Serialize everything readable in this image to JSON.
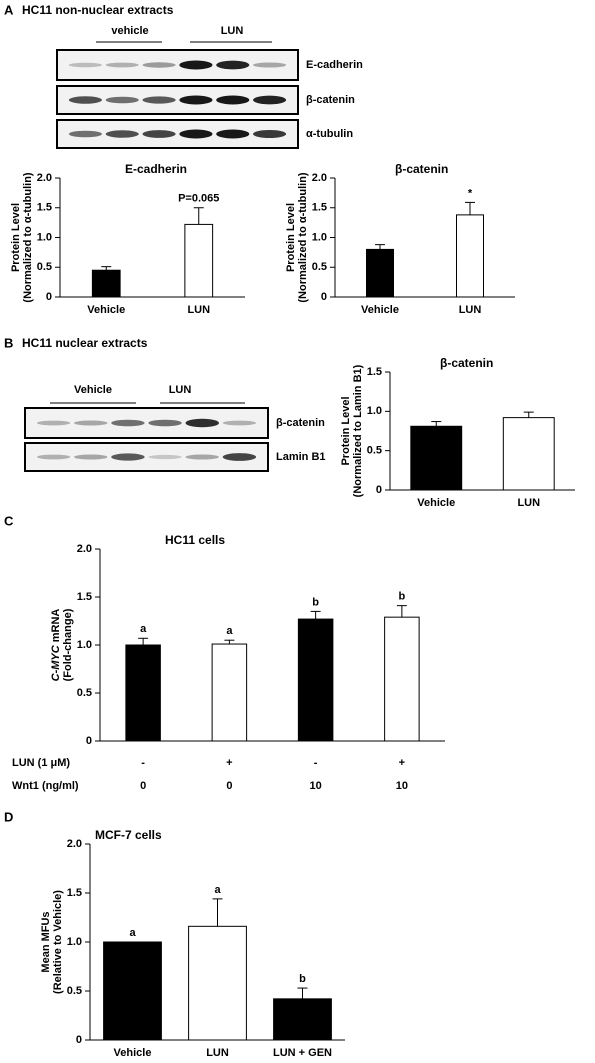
{
  "panels": [
    {
      "letter": "A",
      "title": "HC11 non-nuclear extracts",
      "groups": [
        "vehicle",
        "LUN"
      ],
      "bands": [
        "E-cadherin",
        "β-catenin",
        "α-tubulin"
      ]
    },
    {
      "letter": "B",
      "title": "HC11 nuclear extracts",
      "groups": [
        "Vehicle",
        "LUN"
      ],
      "bands": [
        "β-catenin",
        "Lamin B1"
      ]
    },
    {
      "letter": "C"
    },
    {
      "letter": "D"
    }
  ],
  "chart_data": [
    {
      "type": "bar",
      "title": "E-cadherin",
      "y_label": [
        "Protein Level",
        "(Normalized to α-tubulin)"
      ],
      "categories": [
        "Vehicle",
        "LUN"
      ],
      "values": [
        0.45,
        1.22
      ],
      "errors": [
        0.06,
        0.28
      ],
      "colors": [
        "#000000",
        "#ffffff"
      ],
      "annotations": [
        null,
        "P=0.065"
      ],
      "ylim": [
        0,
        2.0
      ],
      "yticks": [
        0,
        0.5,
        {
          "value": 1.0,
          "label": "1.0"
        },
        1.5,
        {
          "value": 2.0,
          "label": "2.0"
        }
      ]
    },
    {
      "type": "bar",
      "title": "β-catenin",
      "y_label": [
        "Protein Level",
        "(Normalized to α-tubulin)"
      ],
      "categories": [
        "Vehicle",
        "LUN"
      ],
      "values": [
        0.8,
        1.38
      ],
      "errors": [
        0.08,
        0.21
      ],
      "colors": [
        "#000000",
        "#ffffff"
      ],
      "annotations": [
        null,
        "*"
      ],
      "ylim": [
        0,
        2.0
      ],
      "yticks": [
        0,
        0.5,
        {
          "value": 1.0,
          "label": "1.0"
        },
        1.5,
        {
          "value": 2.0,
          "label": "2.0"
        }
      ]
    },
    {
      "type": "bar",
      "title": "β-catenin",
      "y_label": [
        "Protein Level",
        "(Normalized to Lamin B1)"
      ],
      "categories": [
        "Vehicle",
        "LUN"
      ],
      "values": [
        0.81,
        0.92
      ],
      "errors": [
        0.06,
        0.07
      ],
      "colors": [
        "#000000",
        "#ffffff"
      ],
      "ylim": [
        0,
        1.5
      ],
      "yticks": [
        0,
        0.5,
        {
          "value": 1.0,
          "label": "1.0"
        },
        1.5
      ]
    },
    {
      "type": "bar",
      "title": "HC11 cells",
      "y_label": [
        {
          "italic": "C-MYC",
          "text": " mRNA"
        },
        "(Fold-change)"
      ],
      "categories": [
        null,
        null,
        null,
        null
      ],
      "values": [
        1.0,
        1.01,
        1.27,
        1.29
      ],
      "errors": [
        0.07,
        0.04,
        0.08,
        0.12
      ],
      "colors": [
        "#000000",
        "#ffffff",
        "#000000",
        "#ffffff"
      ],
      "annotations": [
        "a",
        "a",
        "b",
        "b"
      ],
      "x_table": [
        {
          "label": "LUN (1 μM)",
          "values": [
            "-",
            "+",
            "-",
            "+"
          ]
        },
        {
          "label": "Wnt1 (ng/ml)",
          "values": [
            0,
            0,
            10,
            10
          ]
        }
      ],
      "ylim": [
        0,
        2.0
      ],
      "yticks": [
        0,
        0.5,
        {
          "value": 1.0,
          "label": "1.0"
        },
        1.5,
        {
          "value": 2.0,
          "label": "2.0"
        }
      ]
    },
    {
      "type": "bar",
      "title": "MCF-7 cells",
      "y_label": [
        "Mean MFUs",
        "(Relative to Vehicle)"
      ],
      "categories": [
        "Vehicle",
        "LUN",
        "LUN + GEN"
      ],
      "values": [
        1.0,
        1.16,
        0.42
      ],
      "errors": [
        0,
        0.28,
        0.11
      ],
      "colors": [
        "#000000",
        "#ffffff",
        "#000000"
      ],
      "annotations": [
        "a",
        "a",
        "b"
      ],
      "ylim": [
        0,
        2.0
      ],
      "yticks": [
        0,
        0.5,
        {
          "value": 1.0,
          "label": "1.0"
        },
        1.5,
        {
          "value": 2.0,
          "label": "2.0"
        }
      ]
    }
  ]
}
